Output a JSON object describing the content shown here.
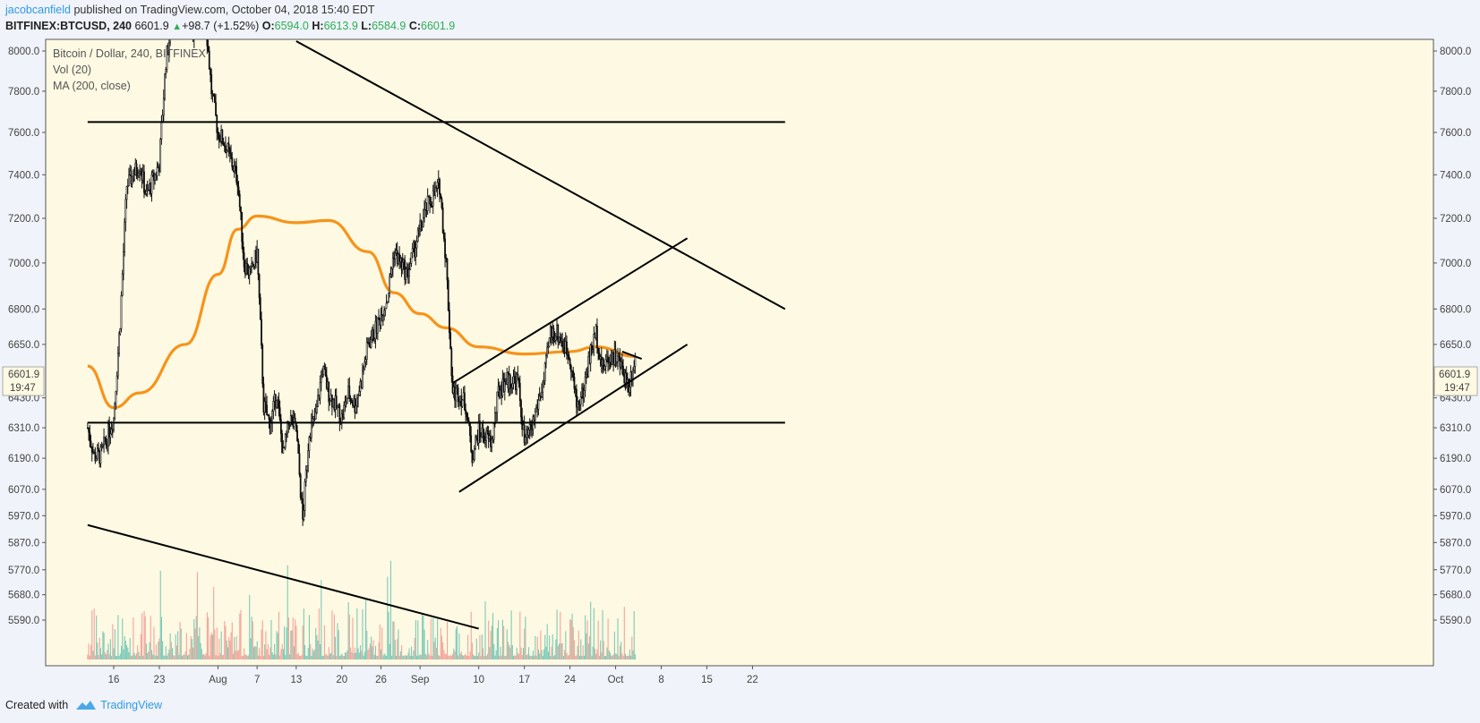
{
  "header": {
    "author": "jacobcanfield",
    "published": "published on TradingView.com, October 04, 2018 15:40 EDT",
    "symbol": "BITFINEX:BTCUSD, 240",
    "last": "6601.9",
    "change": "+98.7 (+1.52%)",
    "ohlc": {
      "o_label": "O:",
      "o": "6594.0",
      "h_label": "H:",
      "h": "6613.9",
      "l_label": "L:",
      "l": "6584.9",
      "c_label": "C:",
      "c": "6601.9"
    }
  },
  "legend": {
    "line1": "Bitcoin / Dollar, 240, BITFINEX",
    "line2": "Vol (20)",
    "line3": "MA (200, close)"
  },
  "price_badge": {
    "price": "6601.9",
    "countdown": "19:47"
  },
  "footer": {
    "created_with": "Created with",
    "brand": "TradingView"
  },
  "colors": {
    "background": "#fdf9e2",
    "candle": "#111111",
    "ma": "#f7931a",
    "vol_up": "#7dcab8",
    "vol_down": "#f2a59b",
    "trendline": "#000000"
  },
  "chart_data": {
    "type": "candlestick",
    "title": "Bitcoin / Dollar, 240, BITFINEX",
    "y_axis": {
      "scale": "log",
      "ticks": [
        8000.0,
        7800.0,
        7600.0,
        7400.0,
        7200.0,
        7000.0,
        6800.0,
        6650.0,
        6430.0,
        6310.0,
        6190.0,
        6070.0,
        5970.0,
        5870.0,
        5770.0,
        5680.0,
        5590.0
      ],
      "tick_labels": [
        "8000.0",
        "7800.0",
        "7600.0",
        "7400.0",
        "7200.0",
        "7000.0",
        "6800.0",
        "6650.0",
        "6430.0",
        "6310.0",
        "6190.0",
        "6070.0",
        "5970.0",
        "5870.0",
        "5770.0",
        "5680.0",
        "5590.0"
      ]
    },
    "x_axis": {
      "tick_labels": [
        "16",
        "23",
        "Aug",
        "7",
        "13",
        "20",
        "26",
        "Sep",
        "10",
        "17",
        "24",
        "Oct",
        "8",
        "15",
        "22"
      ],
      "tick_dates": [
        "2018-07-16",
        "2018-07-23",
        "2018-08-01",
        "2018-08-07",
        "2018-08-13",
        "2018-08-20",
        "2018-08-26",
        "2018-09-01",
        "2018-09-10",
        "2018-09-17",
        "2018-09-24",
        "2018-10-01",
        "2018-10-08",
        "2018-10-15",
        "2018-10-22"
      ]
    },
    "price_path": [
      [
        "2018-07-12",
        6310
      ],
      [
        "2018-07-13",
        6200
      ],
      [
        "2018-07-14",
        6200
      ],
      [
        "2018-07-16",
        6350
      ],
      [
        "2018-07-17",
        6750
      ],
      [
        "2018-07-18",
        7350
      ],
      [
        "2018-07-20",
        7450
      ],
      [
        "2018-07-21",
        7300
      ],
      [
        "2018-07-23",
        7450
      ],
      [
        "2018-07-24",
        7950
      ],
      [
        "2018-07-25",
        8150
      ],
      [
        "2018-07-27",
        8200
      ],
      [
        "2018-07-28",
        8100
      ],
      [
        "2018-07-30",
        8200
      ],
      [
        "2018-07-31",
        7800
      ],
      [
        "2018-08-01",
        7600
      ],
      [
        "2018-08-02",
        7550
      ],
      [
        "2018-08-04",
        7380
      ],
      [
        "2018-08-05",
        7000
      ],
      [
        "2018-08-06",
        6950
      ],
      [
        "2018-08-07",
        7050
      ],
      [
        "2018-08-08",
        6400
      ],
      [
        "2018-08-09",
        6320
      ],
      [
        "2018-08-10",
        6450
      ],
      [
        "2018-08-11",
        6200
      ],
      [
        "2018-08-12",
        6350
      ],
      [
        "2018-08-13",
        6300
      ],
      [
        "2018-08-14",
        5950
      ],
      [
        "2018-08-15",
        6300
      ],
      [
        "2018-08-16",
        6350
      ],
      [
        "2018-08-17",
        6550
      ],
      [
        "2018-08-18",
        6450
      ],
      [
        "2018-08-20",
        6350
      ],
      [
        "2018-08-21",
        6450
      ],
      [
        "2018-08-22",
        6400
      ],
      [
        "2018-08-23",
        6500
      ],
      [
        "2018-08-24",
        6650
      ],
      [
        "2018-08-25",
        6700
      ],
      [
        "2018-08-27",
        6850
      ],
      [
        "2018-08-28",
        7050
      ],
      [
        "2018-08-30",
        6950
      ],
      [
        "2018-09-01",
        7150
      ],
      [
        "2018-09-02",
        7250
      ],
      [
        "2018-09-04",
        7350
      ],
      [
        "2018-09-05",
        7000
      ],
      [
        "2018-09-06",
        6450
      ],
      [
        "2018-09-07",
        6450
      ],
      [
        "2018-09-08",
        6400
      ],
      [
        "2018-09-09",
        6200
      ],
      [
        "2018-09-10",
        6300
      ],
      [
        "2018-09-12",
        6250
      ],
      [
        "2018-09-13",
        6450
      ],
      [
        "2018-09-14",
        6500
      ],
      [
        "2018-09-16",
        6500
      ],
      [
        "2018-09-17",
        6250
      ],
      [
        "2018-09-18",
        6300
      ],
      [
        "2018-09-20",
        6500
      ],
      [
        "2018-09-21",
        6700
      ],
      [
        "2018-09-22",
        6700
      ],
      [
        "2018-09-23",
        6650
      ],
      [
        "2018-09-24",
        6600
      ],
      [
        "2018-09-25",
        6400
      ],
      [
        "2018-09-26",
        6450
      ],
      [
        "2018-09-27",
        6600
      ],
      [
        "2018-09-28",
        6700
      ],
      [
        "2018-09-29",
        6550
      ],
      [
        "2018-09-30",
        6600
      ],
      [
        "2018-10-01",
        6600
      ],
      [
        "2018-10-02",
        6550
      ],
      [
        "2018-10-03",
        6480
      ],
      [
        "2018-10-04",
        6601.9
      ]
    ],
    "ma200": [
      [
        "2018-07-12",
        6560
      ],
      [
        "2018-07-16",
        6390
      ],
      [
        "2018-07-20",
        6450
      ],
      [
        "2018-07-27",
        6650
      ],
      [
        "2018-08-01",
        6950
      ],
      [
        "2018-08-04",
        7150
      ],
      [
        "2018-08-07",
        7210
      ],
      [
        "2018-08-13",
        7180
      ],
      [
        "2018-08-18",
        7190
      ],
      [
        "2018-08-24",
        7050
      ],
      [
        "2018-08-28",
        6870
      ],
      [
        "2018-09-01",
        6780
      ],
      [
        "2018-09-05",
        6720
      ],
      [
        "2018-09-10",
        6640
      ],
      [
        "2018-09-17",
        6610
      ],
      [
        "2018-09-24",
        6620
      ],
      [
        "2018-09-28",
        6640
      ],
      [
        "2018-10-04",
        6600
      ]
    ],
    "trendlines": [
      {
        "name": "horizontal-resistance",
        "points": [
          [
            "2018-07-12",
            7650
          ],
          [
            "2018-10-27",
            7650
          ]
        ]
      },
      {
        "name": "horizontal-support",
        "points": [
          [
            "2018-07-12",
            6330
          ],
          [
            "2018-10-27",
            6330
          ]
        ]
      },
      {
        "name": "descending-resistance",
        "points": [
          [
            "2018-08-13",
            8050
          ],
          [
            "2018-10-27",
            6800
          ]
        ]
      },
      {
        "name": "channel-top",
        "points": [
          [
            "2018-09-06",
            6490
          ],
          [
            "2018-10-12",
            7110
          ]
        ]
      },
      {
        "name": "channel-bottom",
        "points": [
          [
            "2018-09-07",
            6060
          ],
          [
            "2018-10-12",
            6650
          ]
        ]
      },
      {
        "name": "wedge-apex-line",
        "points": [
          [
            "2018-10-02",
            6620
          ],
          [
            "2018-10-05",
            6590
          ]
        ]
      },
      {
        "name": "volume-trendline",
        "points": [
          [
            "2018-07-12",
            5935
          ],
          [
            "2018-09-10",
            5560
          ]
        ]
      }
    ]
  }
}
